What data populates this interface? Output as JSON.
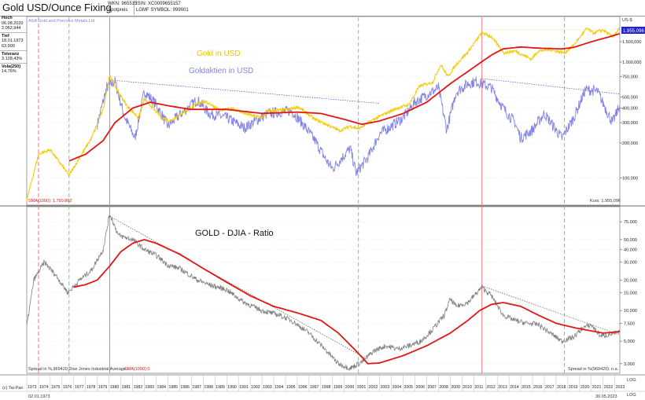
{
  "header": {
    "title": "Gold USD/Ounce Fixing",
    "wkn_line": "WKN: 965515",
    "type_line": "Spotpreis",
    "isin_line": "ISIN: XC0009655157",
    "lgm_line": "LGMF",
    "symbol_line": "SYMBOL: 999001"
  },
  "sidebar": {
    "hoch_label": "Hoch",
    "hoch_date": "06.08.2020",
    "hoch_value": "2.062,944",
    "tief_label": "Tief",
    "tief_date": "18.01.1973",
    "tief_value": "63,900",
    "toleranz_label": "Toleranz",
    "toleranz_value": "3.128,43%",
    "vola_label": "Vola(250)",
    "vola_value": "14,76%"
  },
  "top_panel": {
    "index_label": "ASA Gold and Precious Metals Ltd",
    "currency": "US-$",
    "last_value": "1.955,096",
    "sma_label": "SMA(1000): 1.760,862",
    "kurs_label": "Kurs: 1.955,096",
    "gold_label": "Gold in USD",
    "miners_label": "Goldaktien in USD"
  },
  "bottom_panel": {
    "ratio_label": "GOLD - DJIA - Ratio",
    "spread_label": "Spread in %,969420;Dow Jones Industrial Average - ",
    "spread_sma_label": "SMA(1000):0",
    "spread_right": "Spread in %(969420): n.a.",
    "log_label_1": "LOG",
    "log_label_2": "LOG"
  },
  "footer": {
    "copyright": "(c) Tai-Pan",
    "start_date": "02.01.1973",
    "end_date": "30.05.2023"
  },
  "colors": {
    "gold": "#f2cc0c",
    "miners": "#8383e6",
    "sma": "#e31616",
    "ratio": "#7f7f7f",
    "red_dashed": "#ef6a6a",
    "green_dashed": "#6fc36f",
    "trend": "#2a2ad0"
  },
  "chart_data": [
    {
      "type": "line",
      "title": "Gold USD/Ounce Fixing",
      "scale": "log",
      "ylim": [
        60,
        2062.944
      ],
      "y_ticks": [
        100,
        200,
        300,
        400,
        500,
        750,
        1000,
        1500
      ],
      "y_tick_labels": [
        "100,000",
        "200,000",
        "300,000",
        "400,000",
        "500,000",
        "750,000",
        "1.000,000",
        "1.500,000"
      ],
      "series": [
        {
          "name": "Gold in USD",
          "x": [
            1973.0,
            1974.0,
            1975.0,
            1976.6,
            1977.5,
            1978.5,
            1979.5,
            1980.05,
            1980.5,
            1981.5,
            1982.5,
            1983.0,
            1984.5,
            1985.2,
            1986.5,
            1987.9,
            1988.5,
            1989.5,
            1990.5,
            1991.5,
            1993.0,
            1993.5,
            1995.0,
            1996.1,
            1997.5,
            1998.5,
            1999.6,
            2000.5,
            2001.2,
            2002.5,
            2003.5,
            2004.5,
            2005.5,
            2006.4,
            2007.5,
            2008.2,
            2008.8,
            2009.5,
            2010.5,
            2011.7,
            2012.5,
            2013.6,
            2014.5,
            2015.9,
            2016.5,
            2017.5,
            2018.7,
            2019.5,
            2020.6,
            2021.2,
            2022.0,
            2022.8,
            2023.4
          ],
          "y": [
            64,
            160,
            175,
            105,
            150,
            220,
            390,
            780,
            620,
            420,
            330,
            480,
            330,
            310,
            380,
            460,
            440,
            380,
            400,
            360,
            330,
            380,
            385,
            410,
            320,
            290,
            255,
            280,
            265,
            320,
            360,
            400,
            430,
            620,
            670,
            950,
            750,
            950,
            1225,
            1800,
            1650,
            1200,
            1250,
            1060,
            1250,
            1280,
            1200,
            1400,
            1950,
            1780,
            1900,
            1650,
            1955
          ]
        },
        {
          "name": "Goldaktien in USD",
          "x": [
            1979.0,
            1979.8,
            1980.5,
            1981.3,
            1982.2,
            1983.0,
            1984.0,
            1985.0,
            1986.0,
            1987.5,
            1988.5,
            1990.0,
            1991.5,
            1993.5,
            1995.5,
            1996.5,
            1997.5,
            1998.5,
            1999.0,
            2000.5,
            2001.0,
            2002.0,
            2003.0,
            2004.0,
            2005.0,
            2006.0,
            2007.0,
            2008.0,
            2008.7,
            2009.5,
            2010.5,
            2011.2,
            2012.5,
            2013.5,
            2014.5,
            2015.0,
            2016.0,
            2017.0,
            2018.5,
            2019.5,
            2020.5,
            2021.5,
            2022.3,
            2022.8,
            2023.4
          ],
          "y": [
            290,
            600,
            680,
            340,
            220,
            560,
            430,
            280,
            350,
            470,
            360,
            330,
            270,
            360,
            380,
            290,
            210,
            140,
            120,
            180,
            110,
            150,
            240,
            280,
            330,
            450,
            520,
            600,
            260,
            550,
            650,
            680,
            600,
            400,
            300,
            220,
            260,
            360,
            220,
            330,
            580,
            560,
            380,
            300,
            420
          ]
        },
        {
          "name": "SMA(1000)",
          "x": [
            1976.6,
            1978.0,
            1979.5,
            1980.5,
            1982.0,
            1983.5,
            1985.0,
            1987.0,
            1990.0,
            1993.0,
            1996.0,
            1998.0,
            2000.0,
            2001.5,
            2003.0,
            2005.0,
            2007.0,
            2009.0,
            2011.0,
            2012.5,
            2013.5,
            2015.0,
            2016.5,
            2018.5,
            2019.5,
            2021.0,
            2022.5,
            2023.4
          ],
          "y": [
            140,
            160,
            210,
            300,
            400,
            450,
            420,
            390,
            390,
            360,
            370,
            360,
            320,
            290,
            310,
            360,
            450,
            650,
            900,
            1150,
            1300,
            1350,
            1320,
            1300,
            1340,
            1500,
            1650,
            1760
          ]
        }
      ]
    },
    {
      "type": "line",
      "title": "GOLD - DJIA - Ratio",
      "scale": "log",
      "ylim": [
        2500,
        100000
      ],
      "y_ticks": [
        3000,
        5000,
        7500,
        10000,
        15000,
        20000,
        30000,
        40000,
        50000,
        75000
      ],
      "y_tick_labels": [
        "3,000",
        "5,000",
        "7,500",
        "10,000",
        "15,000",
        "20,000",
        "30,000",
        "40,000",
        "50,000",
        "75,000"
      ],
      "series": [
        {
          "name": "GOLD - DJIA - Ratio",
          "x": [
            1973.0,
            1973.6,
            1974.5,
            1975.5,
            1976.5,
            1977.5,
            1978.5,
            1979.5,
            1980.05,
            1980.8,
            1982.0,
            1983.0,
            1984.0,
            1985.0,
            1986.0,
            1987.5,
            1988.5,
            1990.0,
            1991.5,
            1993.0,
            1994.5,
            1995.5,
            1997.0,
            1998.5,
            1999.5,
            2000.5,
            2001.0,
            2001.6,
            2002.5,
            2003.5,
            2004.5,
            2005.5,
            2006.5,
            2007.5,
            2008.5,
            2009.0,
            2009.5,
            2010.5,
            2011.7,
            2012.5,
            2013.5,
            2014.5,
            2015.5,
            2016.5,
            2017.5,
            2018.5,
            2019.5,
            2020.3,
            2021.0,
            2021.8,
            2022.5,
            2023.4
          ],
          "y": [
            7000,
            20000,
            30000,
            22000,
            15000,
            20000,
            25000,
            40000,
            90000,
            55000,
            50000,
            40000,
            35000,
            28000,
            26000,
            20000,
            18000,
            16000,
            12000,
            10000,
            9000,
            8000,
            6000,
            4000,
            3000,
            2700,
            2900,
            3200,
            4000,
            4500,
            4200,
            4500,
            5000,
            6500,
            9000,
            13000,
            11000,
            12000,
            17000,
            14000,
            9000,
            8000,
            7500,
            7300,
            6000,
            5000,
            5500,
            6800,
            7200,
            5600,
            5800,
            6100
          ]
        },
        {
          "name": "SMA(1000)",
          "x": [
            1977.0,
            1978.0,
            1979.0,
            1980.0,
            1981.0,
            1982.0,
            1983.0,
            1984.0,
            1986.0,
            1988.0,
            1990.0,
            1992.0,
            1994.0,
            1996.0,
            1998.0,
            1999.5,
            2001.0,
            2002.0,
            2003.0,
            2005.0,
            2007.0,
            2009.0,
            2010.5,
            2011.5,
            2012.5,
            2013.5,
            2015.0,
            2016.5,
            2018.0,
            2019.5,
            2021.0,
            2022.0,
            2023.4
          ],
          "y": [
            17000,
            18000,
            20000,
            27000,
            38000,
            46000,
            50000,
            46000,
            36000,
            26000,
            19000,
            14000,
            11000,
            9500,
            8000,
            6000,
            4000,
            3000,
            3050,
            3600,
            4500,
            6000,
            8000,
            10000,
            11500,
            12000,
            11000,
            9000,
            7500,
            6800,
            6300,
            6000,
            6200
          ]
        }
      ]
    }
  ],
  "x_axis": {
    "years": [
      "1973",
      "1974",
      "1975",
      "1976",
      "1977",
      "1978",
      "1979",
      "1980",
      "1981",
      "1982",
      "1983",
      "1984",
      "1985",
      "1986",
      "1987",
      "1988",
      "1989",
      "1990",
      "1991",
      "1992",
      "1993",
      "1994",
      "1995",
      "1996",
      "1997",
      "1998",
      "1999",
      "2000",
      "2001",
      "2002",
      "2003",
      "2004",
      "2005",
      "2006",
      "2007",
      "2008",
      "2009",
      "2010",
      "2011",
      "2012",
      "2013",
      "2014",
      "2015",
      "2016",
      "2017",
      "2018",
      "2019",
      "2020",
      "2021",
      "2022",
      "2023"
    ]
  }
}
